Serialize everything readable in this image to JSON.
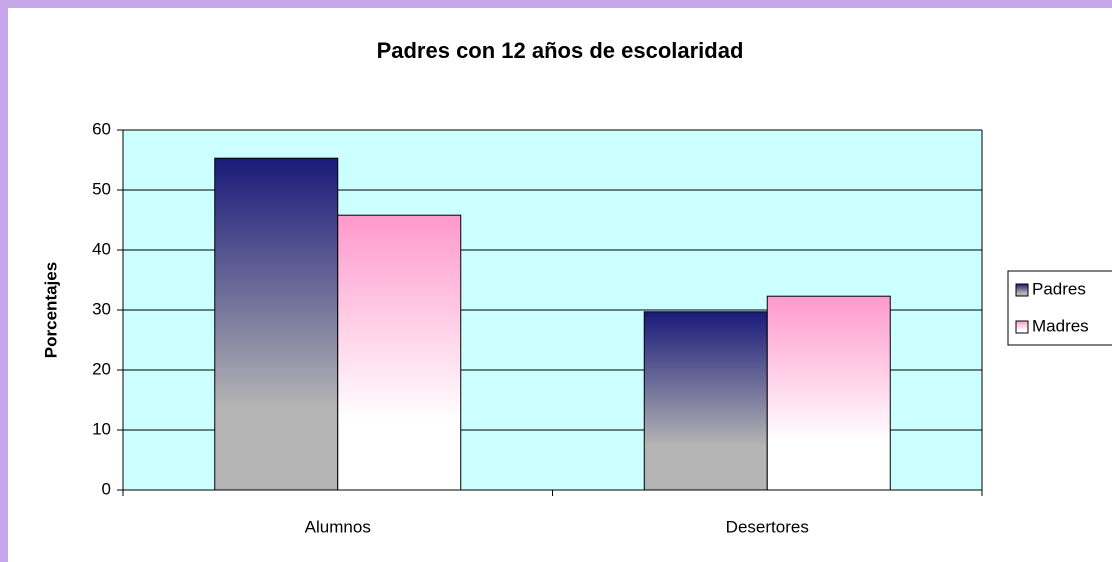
{
  "chart_data": {
    "type": "bar",
    "title": "Padres con 12 años de escolaridad",
    "y_label": "Porcentajes",
    "categories": [
      "Alumnos",
      "Desertores"
    ],
    "series": [
      {
        "name": "Padres",
        "color": "#1a1a7a",
        "gradient_to": "#b4b4b4",
        "values": [
          55.3,
          29.7
        ]
      },
      {
        "name": "Madres",
        "color": "#ff99cc",
        "gradient_to": "#ffffff",
        "values": [
          45.8,
          32.3
        ]
      }
    ],
    "ylim": [
      0,
      60
    ],
    "yticks": [
      0,
      10,
      20,
      30,
      40,
      50,
      60
    ],
    "grid": true,
    "legend": "right",
    "plot_background": "#ccffff"
  }
}
